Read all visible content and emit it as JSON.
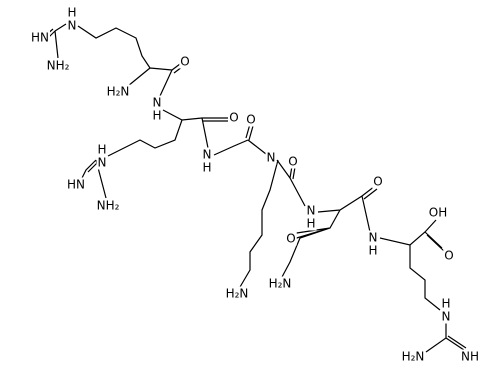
{
  "atom_labels": [
    "H",
    "N",
    "HN",
    "NH₂",
    "H₂N",
    "O",
    "N",
    "H",
    "O",
    "N",
    "H",
    "H",
    "N",
    "HN",
    "NH₂",
    "O",
    "N",
    "O",
    "N",
    "H",
    "O",
    "O",
    "H₂N",
    "N",
    "H",
    "OH",
    "O",
    "H₂N",
    "H",
    "N",
    "H₂N",
    "NH"
  ]
}
